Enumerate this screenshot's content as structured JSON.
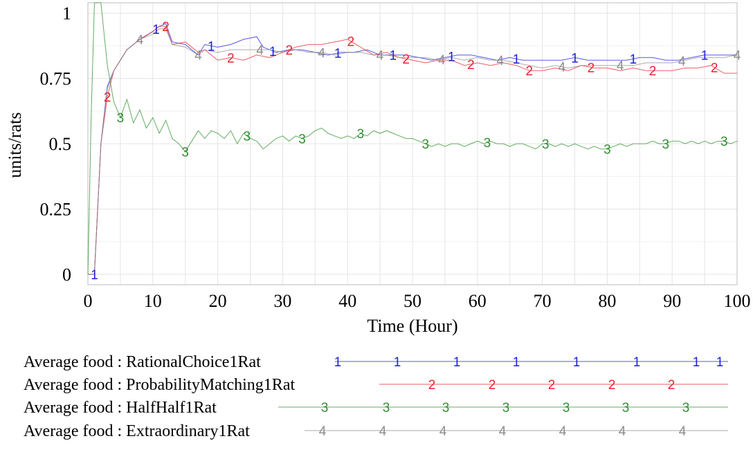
{
  "chart_data": {
    "type": "line",
    "title": "",
    "xlabel": "Time (Hour)",
    "ylabel": "units/rats",
    "xlim": [
      0,
      100
    ],
    "ylim": [
      -0.04,
      1.04
    ],
    "x_ticks": [
      0,
      10,
      20,
      30,
      40,
      50,
      60,
      70,
      80,
      90,
      100
    ],
    "y_ticks": [
      0,
      0.25,
      0.5,
      0.75,
      1
    ],
    "y_tick_labels": [
      "0",
      "0.25",
      "0.5",
      "0.75",
      "1"
    ],
    "grid": true,
    "legend_position": "bottom",
    "series": [
      {
        "name": "Average food : RationalChoice1Rat",
        "marker": "1",
        "color": "#1f1fdd",
        "x": [
          0,
          1,
          2,
          3,
          4,
          5,
          6,
          8,
          10,
          11,
          12,
          13,
          15,
          17,
          18,
          20,
          22,
          24,
          26,
          27,
          29,
          31,
          33,
          35,
          37,
          39,
          41,
          43,
          45,
          47,
          49,
          51,
          53,
          55,
          57,
          59,
          61,
          63,
          65,
          67,
          69,
          71,
          73,
          75,
          77,
          79,
          81,
          83,
          85,
          87,
          89,
          91,
          93,
          95,
          97,
          99,
          100
        ],
        "y": [
          0,
          0,
          0.5,
          0.72,
          0.78,
          0.82,
          0.86,
          0.9,
          0.93,
          0.95,
          0.96,
          0.89,
          0.88,
          0.84,
          0.88,
          0.87,
          0.88,
          0.9,
          0.91,
          0.87,
          0.85,
          0.86,
          0.86,
          0.85,
          0.84,
          0.85,
          0.85,
          0.86,
          0.84,
          0.84,
          0.84,
          0.83,
          0.82,
          0.83,
          0.84,
          0.84,
          0.83,
          0.82,
          0.83,
          0.82,
          0.82,
          0.82,
          0.82,
          0.83,
          0.82,
          0.82,
          0.82,
          0.82,
          0.83,
          0.83,
          0.82,
          0.82,
          0.83,
          0.84,
          0.84,
          0.84,
          0.84
        ]
      },
      {
        "name": "Average food : ProbabilityMatching1Rat",
        "marker": "2",
        "color": "#e8242f",
        "x": [
          0,
          1,
          2,
          3,
          4,
          5,
          6,
          8,
          10,
          11,
          12,
          13,
          15,
          17,
          18,
          20,
          22,
          24,
          26,
          28,
          30,
          32,
          34,
          36,
          38,
          40,
          42,
          44,
          46,
          48,
          50,
          52,
          54,
          56,
          58,
          60,
          62,
          64,
          66,
          68,
          70,
          72,
          74,
          76,
          78,
          80,
          82,
          84,
          86,
          88,
          90,
          92,
          94,
          96,
          98,
          100
        ],
        "y": [
          0,
          0,
          0.5,
          0.68,
          0.78,
          0.82,
          0.86,
          0.9,
          0.93,
          0.95,
          0.95,
          0.88,
          0.89,
          0.85,
          0.86,
          0.82,
          0.83,
          0.82,
          0.84,
          0.83,
          0.85,
          0.87,
          0.88,
          0.88,
          0.89,
          0.9,
          0.87,
          0.84,
          0.85,
          0.83,
          0.82,
          0.81,
          0.82,
          0.82,
          0.8,
          0.81,
          0.8,
          0.81,
          0.8,
          0.78,
          0.78,
          0.79,
          0.78,
          0.8,
          0.79,
          0.79,
          0.78,
          0.79,
          0.78,
          0.78,
          0.78,
          0.79,
          0.79,
          0.8,
          0.77,
          0.77
        ]
      },
      {
        "name": "Average food : HalfHalf1Rat",
        "marker": "3",
        "color": "#2f8f2f",
        "x": [
          0,
          0.5,
          1,
          1.5,
          2,
          3,
          4,
          5,
          6,
          7,
          8,
          9,
          10,
          11,
          12,
          13,
          14,
          15,
          16,
          17,
          18,
          19,
          20,
          21,
          22,
          23,
          24,
          25,
          26,
          27,
          28,
          29,
          30,
          31,
          32,
          33,
          34,
          35,
          36,
          37,
          38,
          39,
          40,
          41,
          42,
          43,
          44,
          45,
          46,
          47,
          48,
          49,
          50,
          51,
          52,
          53,
          54,
          55,
          56,
          57,
          58,
          59,
          60,
          61,
          62,
          63,
          64,
          65,
          66,
          67,
          68,
          69,
          70,
          71,
          72,
          73,
          74,
          75,
          76,
          77,
          78,
          79,
          80,
          81,
          82,
          83,
          84,
          85,
          86,
          87,
          88,
          89,
          90,
          91,
          92,
          93,
          94,
          95,
          96,
          97,
          98,
          99,
          100
        ],
        "y": [
          0,
          0.6,
          1.04,
          1.04,
          1.04,
          0.8,
          0.66,
          0.6,
          0.67,
          0.58,
          0.63,
          0.56,
          0.6,
          0.54,
          0.59,
          0.52,
          0.5,
          0.47,
          0.51,
          0.55,
          0.52,
          0.55,
          0.54,
          0.52,
          0.55,
          0.5,
          0.54,
          0.52,
          0.51,
          0.48,
          0.5,
          0.52,
          0.53,
          0.51,
          0.53,
          0.52,
          0.53,
          0.55,
          0.56,
          0.54,
          0.53,
          0.52,
          0.53,
          0.52,
          0.54,
          0.53,
          0.55,
          0.54,
          0.55,
          0.54,
          0.53,
          0.52,
          0.52,
          0.51,
          0.5,
          0.49,
          0.5,
          0.49,
          0.5,
          0.5,
          0.49,
          0.5,
          0.51,
          0.5,
          0.51,
          0.5,
          0.5,
          0.49,
          0.5,
          0.5,
          0.49,
          0.48,
          0.5,
          0.5,
          0.49,
          0.5,
          0.49,
          0.5,
          0.49,
          0.48,
          0.49,
          0.48,
          0.48,
          0.49,
          0.5,
          0.49,
          0.5,
          0.5,
          0.5,
          0.51,
          0.5,
          0.5,
          0.51,
          0.51,
          0.5,
          0.51,
          0.5,
          0.51,
          0.5,
          0.51,
          0.51,
          0.5,
          0.51
        ]
      },
      {
        "name": "Average food : Extraordinary1Rat",
        "marker": "4",
        "color": "#8c8c8c",
        "x": [
          0,
          1,
          2,
          3,
          4,
          5,
          6,
          8,
          10,
          11,
          12,
          13,
          15,
          17,
          18,
          20,
          22,
          24,
          26,
          28,
          30,
          32,
          34,
          36,
          38,
          40,
          42,
          44,
          46,
          48,
          50,
          52,
          54,
          56,
          58,
          60,
          62,
          64,
          66,
          68,
          70,
          72,
          74,
          76,
          78,
          80,
          82,
          84,
          86,
          88,
          90,
          92,
          94,
          96,
          98,
          100
        ],
        "y": [
          0,
          0,
          0.5,
          0.71,
          0.78,
          0.82,
          0.86,
          0.9,
          0.92,
          0.94,
          0.94,
          0.88,
          0.87,
          0.84,
          0.86,
          0.85,
          0.86,
          0.86,
          0.86,
          0.86,
          0.85,
          0.86,
          0.85,
          0.85,
          0.84,
          0.85,
          0.85,
          0.84,
          0.84,
          0.83,
          0.83,
          0.83,
          0.82,
          0.83,
          0.82,
          0.83,
          0.82,
          0.82,
          0.81,
          0.8,
          0.79,
          0.8,
          0.79,
          0.8,
          0.8,
          0.8,
          0.8,
          0.8,
          0.81,
          0.81,
          0.81,
          0.82,
          0.83,
          0.83,
          0.83,
          0.84
        ]
      }
    ]
  }
}
